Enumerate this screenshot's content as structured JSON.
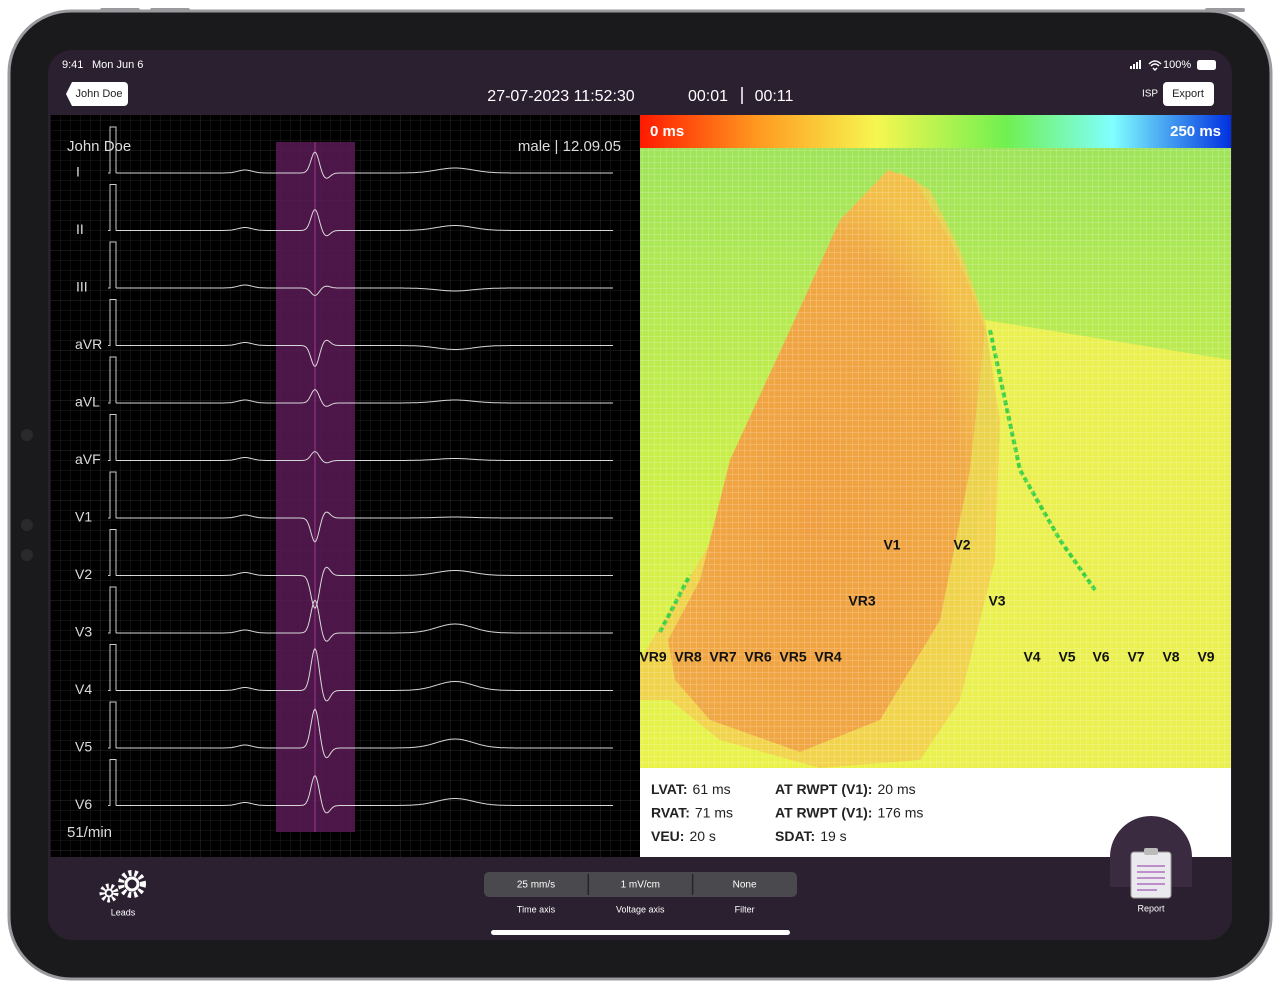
{
  "status": {
    "time": "9:41",
    "date": "Mon Jun 6",
    "battery": "100%"
  },
  "header": {
    "patient_button": "John Doe",
    "datetime": "27-07-2023 11:52:30",
    "time_start": "00:01",
    "time_end": "00:11",
    "isp": "ISP",
    "export": "Export"
  },
  "ecg": {
    "patient": "John Doe",
    "info": "male | 12.09.05",
    "leads": [
      "I",
      "II",
      "III",
      "aVR",
      "aVL",
      "aVF",
      "V1",
      "V2",
      "V3",
      "V4",
      "V5",
      "V6"
    ],
    "heart_rate": "51/min"
  },
  "map": {
    "scale_min": "0 ms",
    "scale_max": "250 ms",
    "electrodes": [
      "V1",
      "V2",
      "VR3",
      "V3",
      "VR9",
      "VR8",
      "VR7",
      "VR6",
      "VR5",
      "VR4",
      "V4",
      "V5",
      "V6",
      "V7",
      "V8",
      "V9"
    ]
  },
  "metrics": {
    "left": [
      {
        "label": "LVAT:",
        "value": "61 ms"
      },
      {
        "label": "RVAT:",
        "value": "71 ms"
      },
      {
        "label": "VEU:",
        "value": "20 s"
      }
    ],
    "right": [
      {
        "label": "AT RWPT (V1):",
        "value": "20 ms"
      },
      {
        "label": "AT RWPT (V1):",
        "value": "176 ms"
      },
      {
        "label": "SDAT:",
        "value": "19 s"
      }
    ]
  },
  "toolbar": {
    "leads": "Leads",
    "segments": [
      {
        "value": "25 mm/s",
        "caption": "Time axis"
      },
      {
        "value": "1 mV/cm",
        "caption": "Voltage axis"
      },
      {
        "value": "None",
        "caption": "Filter"
      }
    ],
    "report": "Report"
  }
}
